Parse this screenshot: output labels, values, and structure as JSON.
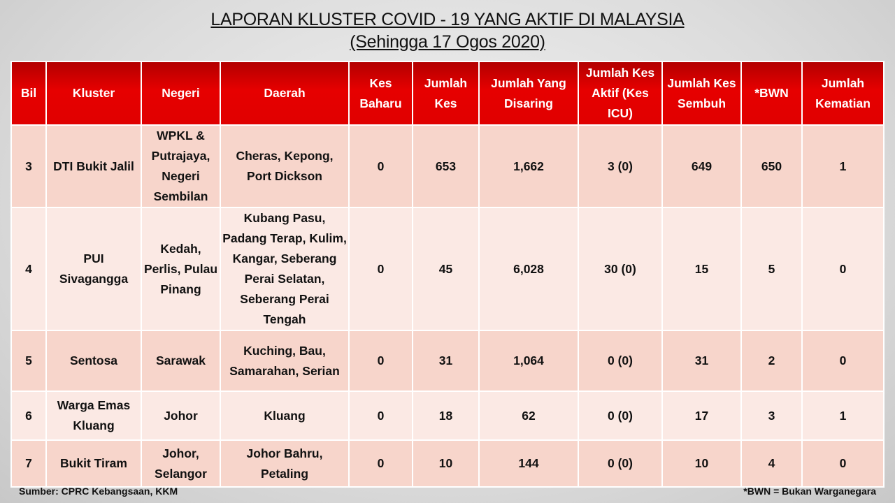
{
  "title": "LAPORAN KLUSTER COVID - 19 YANG AKTIF DI MALAYSIA",
  "subtitle": "(Sehingga 17 Ogos 2020)",
  "headers": [
    "Bil",
    "Kluster",
    "Negeri",
    "Daerah",
    "Kes Baharu",
    "Jumlah Kes",
    "Jumlah Yang Disaring",
    "Jumlah Kes Aktif (Kes ICU)",
    "Jumlah Kes Sembuh",
    "*BWN",
    "Jumlah Kematian"
  ],
  "rows": [
    [
      "3",
      "DTI Bukit Jalil",
      "WPKL & Putrajaya, Negeri Sembilan",
      "Cheras, Kepong, Port Dickson",
      "0",
      "653",
      "1,662",
      "3 (0)",
      "649",
      "650",
      "1"
    ],
    [
      "4",
      "PUI Sivagangga",
      "Kedah, Perlis, Pulau Pinang",
      "Kubang Pasu, Padang Terap, Kulim, Kangar, Seberang Perai Selatan, Seberang Perai Tengah",
      "0",
      "45",
      "6,028",
      "30 (0)",
      "15",
      "5",
      "0"
    ],
    [
      "5",
      "Sentosa",
      "Sarawak",
      "Kuching, Bau, Samarahan, Serian",
      "0",
      "31",
      "1,064",
      "0 (0)",
      "31",
      "2",
      "0"
    ],
    [
      "6",
      "Warga Emas Kluang",
      "Johor",
      "Kluang",
      "0",
      "18",
      "62",
      "0 (0)",
      "17",
      "3",
      "1"
    ],
    [
      "7",
      "Bukit Tiram",
      "Johor, Selangor",
      "Johor Bahru, Petaling",
      "0",
      "10",
      "144",
      "0 (0)",
      "10",
      "4",
      "0"
    ]
  ],
  "source": "Sumber: CPRC Kebangsaan, KKM",
  "note": "*BWN = Bukan Warganegara",
  "colors": {
    "header": "#e00000",
    "row_dark": "#f7d5cb",
    "row_light": "#fbe9e4"
  }
}
